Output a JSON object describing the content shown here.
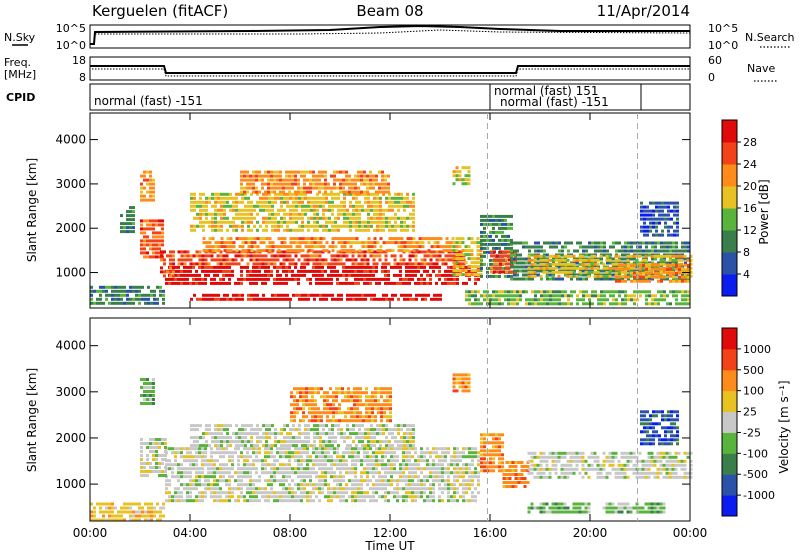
{
  "header": {
    "title": "Kerguelen (fitACF)",
    "beam": "Beam 08",
    "date": "11/Apr/2014"
  },
  "nsky_panel": {
    "left_label": "N.Sky",
    "right_label": "N.Search",
    "left_ticks": [
      "10^5",
      "10^0"
    ],
    "right_ticks": [
      "10^5",
      "10^0"
    ]
  },
  "freq_panel": {
    "left_label_line1": "Freq.",
    "left_label_line2": "[MHz]",
    "right_label": "Nave",
    "left_ticks": [
      "18",
      "8"
    ],
    "right_ticks": [
      "60",
      "0"
    ]
  },
  "cpid": {
    "label": "CPID",
    "segments": [
      "normal (fast) -151",
      "normal (fast) 151",
      "normal (fast) -151"
    ]
  },
  "chart_data": [
    {
      "type": "heatmap",
      "name": "power",
      "ylabel": "Slant Range [km]",
      "y_ticks": [
        "1000",
        "2000",
        "3000",
        "4000"
      ],
      "ylim": [
        200,
        4600
      ],
      "colorbar_label": "Power [dB]",
      "colorbar_ticks": [
        "4",
        "8",
        "12",
        "16",
        "20",
        "24",
        "28"
      ],
      "colorbar_colors": [
        "#0a1cf0",
        "#2a52a8",
        "#3a7e4c",
        "#58b43c",
        "#e8c222",
        "#ff8c1a",
        "#f44218",
        "#e00a0a"
      ],
      "regions": [
        {
          "t0": 3.0,
          "t1": 15.6,
          "r0": 700,
          "r1": 1150,
          "level": 7
        },
        {
          "t0": 3.5,
          "t1": 15.0,
          "r0": 1150,
          "r1": 1500,
          "level": 6
        },
        {
          "t0": 4.5,
          "t1": 14.5,
          "r0": 1500,
          "r1": 1800,
          "level": 5
        },
        {
          "t0": 4.0,
          "t1": 14.0,
          "r0": 380,
          "r1": 520,
          "level": 7
        },
        {
          "t0": 2.0,
          "t1": 2.9,
          "r0": 1300,
          "r1": 2200,
          "level": 6
        },
        {
          "t0": 2.8,
          "t1": 3.3,
          "r0": 900,
          "r1": 1500,
          "level": 6
        },
        {
          "t0": 1.2,
          "t1": 1.8,
          "r0": 1900,
          "r1": 2500,
          "level": 2
        },
        {
          "t0": 2.0,
          "t1": 2.6,
          "r0": 2600,
          "r1": 3300,
          "level": 5
        },
        {
          "t0": 4.0,
          "t1": 13.0,
          "r0": 1900,
          "r1": 2800,
          "level": 4
        },
        {
          "t0": 6.0,
          "t1": 12.0,
          "r0": 2800,
          "r1": 3300,
          "level": 5
        },
        {
          "t0": 14.5,
          "t1": 15.6,
          "r0": 900,
          "r1": 1800,
          "level": 4
        },
        {
          "t0": 15.6,
          "t1": 16.8,
          "r0": 900,
          "r1": 2300,
          "level": 2
        },
        {
          "t0": 16.0,
          "t1": 17.0,
          "r0": 1000,
          "r1": 1500,
          "level": 6
        },
        {
          "t0": 16.8,
          "t1": 24.0,
          "r0": 800,
          "r1": 1700,
          "level": 2
        },
        {
          "t0": 17.5,
          "t1": 24.0,
          "r0": 900,
          "r1": 1400,
          "level": 4
        },
        {
          "t0": 21.0,
          "t1": 24.0,
          "r0": 800,
          "r1": 1200,
          "level": 5
        },
        {
          "t0": 0.0,
          "t1": 3.0,
          "r0": 250,
          "r1": 700,
          "level": 2
        },
        {
          "t0": 15.0,
          "t1": 24.0,
          "r0": 250,
          "r1": 600,
          "level": 3
        },
        {
          "t0": 14.5,
          "t1": 15.2,
          "r0": 3000,
          "r1": 3400,
          "level": 4
        },
        {
          "t0": 22.0,
          "t1": 23.5,
          "r0": 1800,
          "r1": 2600,
          "level": 1
        }
      ]
    },
    {
      "type": "heatmap",
      "name": "velocity",
      "ylabel": "Slant Range [km]",
      "y_ticks": [
        "1000",
        "2000",
        "3000",
        "4000"
      ],
      "ylim": [
        200,
        4600
      ],
      "colorbar_label": "Velocity [m s⁻¹]",
      "colorbar_ticks": [
        "1000",
        "500",
        "100",
        "25",
        "-25",
        "-100",
        "-500",
        "-1000"
      ],
      "colorbar_colors": [
        "#0a1cf0",
        "#2a52a8",
        "#3a7e4c",
        "#58b43c",
        "#c8c8c8",
        "#e8c222",
        "#ff8c1a",
        "#f44218",
        "#e00a0a"
      ],
      "regions": [
        {
          "t0": 3.0,
          "t1": 15.6,
          "r0": 600,
          "r1": 1800,
          "level": 4
        },
        {
          "t0": 4.0,
          "t1": 13.0,
          "r0": 1800,
          "r1": 2300,
          "level": 4
        },
        {
          "t0": 2.0,
          "t1": 3.0,
          "r0": 1200,
          "r1": 2000,
          "level": 4
        },
        {
          "t0": 15.6,
          "t1": 16.5,
          "r0": 1300,
          "r1": 2100,
          "level": 6
        },
        {
          "t0": 16.5,
          "t1": 17.5,
          "r0": 900,
          "r1": 1500,
          "level": 6
        },
        {
          "t0": 17.5,
          "t1": 24.0,
          "r0": 1100,
          "r1": 1700,
          "level": 4
        },
        {
          "t0": 0.0,
          "t1": 3.0,
          "r0": 250,
          "r1": 600,
          "level": 5
        },
        {
          "t0": 20.5,
          "t1": 23.0,
          "r0": 350,
          "r1": 600,
          "level": 3
        },
        {
          "t0": 17.5,
          "t1": 20.0,
          "r0": 400,
          "r1": 600,
          "level": 3
        },
        {
          "t0": 2.0,
          "t1": 2.6,
          "r0": 2700,
          "r1": 3300,
          "level": 3
        },
        {
          "t0": 14.5,
          "t1": 15.2,
          "r0": 3000,
          "r1": 3400,
          "level": 6
        },
        {
          "t0": 22.0,
          "t1": 23.5,
          "r0": 1900,
          "r1": 2600,
          "level": 1
        },
        {
          "t0": 8.0,
          "t1": 12.0,
          "r0": 2400,
          "r1": 3100,
          "level": 6
        }
      ]
    }
  ],
  "x_axis": {
    "label": "Time UT",
    "ticks": [
      "00:00",
      "04:00",
      "08:00",
      "12:00",
      "16:00",
      "20:00",
      "00:00"
    ],
    "xlim": [
      0,
      24
    ]
  },
  "markers_hours": [
    15.9,
    21.9
  ]
}
